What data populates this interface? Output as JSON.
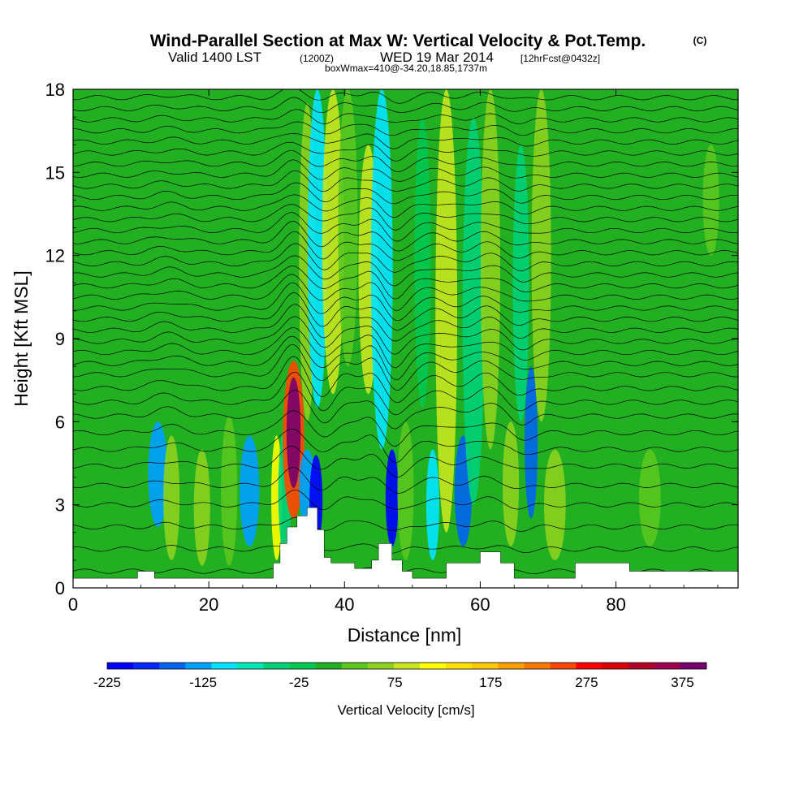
{
  "header": {
    "title": "Wind-Parallel Section at Max W: Vertical Velocity & Pot.Temp.",
    "copyright": "(C)",
    "valid_prefix": "Valid 1400 LST",
    "valid_utc": "(1200Z)",
    "valid_date": "WED 19 Mar 2014",
    "forecast": "[12hrFcst@0432z]",
    "box_info": "boxWmax=410@-34.20,18.85,1737m"
  },
  "colors": {
    "background_green": "#22b022",
    "terrain_fill": "#ffffff",
    "contour_line": "#000000"
  },
  "chart_data": {
    "type": "heatmap",
    "title": "Wind-Parallel Section at Max W: Vertical Velocity & Pot.Temp.",
    "xlabel": "Distance [nm]",
    "ylabel": "Height [Kft MSL]",
    "xlim": [
      0,
      98
    ],
    "ylim": [
      0,
      18
    ],
    "x_ticks": [
      "0",
      "20",
      "40",
      "60",
      "80"
    ],
    "y_ticks": [
      "0",
      "3",
      "6",
      "9",
      "12",
      "15",
      "18"
    ],
    "x_tick_values": [
      0,
      20,
      40,
      60,
      80
    ],
    "y_tick_values": [
      0,
      3,
      6,
      9,
      12,
      15,
      18
    ],
    "colorbar": {
      "label": "Vertical Velocity [cm/s]",
      "tick_labels": [
        "-225",
        "-125",
        "-25",
        "75",
        "175",
        "275",
        "375"
      ],
      "tick_values": [
        -225,
        -125,
        -25,
        75,
        175,
        275,
        375
      ],
      "min": -225,
      "max": 400,
      "colors": [
        "#0000ff",
        "#0028ff",
        "#0064f0",
        "#00a0ff",
        "#00e6ff",
        "#00e6b4",
        "#00d278",
        "#00c850",
        "#22b022",
        "#5ac81e",
        "#8cd21e",
        "#c8e61e",
        "#ffff00",
        "#ffe100",
        "#ffc800",
        "#ffa000",
        "#ff7800",
        "#ff4600",
        "#ff0000",
        "#dc0000",
        "#b40028",
        "#a00050",
        "#78006e"
      ]
    },
    "max_w": 410,
    "max_w_location": {
      "distance_nm": 32.5,
      "height_kft": 6.5
    },
    "terrain_kft": [
      [
        0,
        0.35
      ],
      [
        9.5,
        0.35
      ],
      [
        9.5,
        0.6
      ],
      [
        12,
        0.6
      ],
      [
        12,
        0.35
      ],
      [
        29.5,
        0.35
      ],
      [
        29.5,
        0.9
      ],
      [
        30.5,
        0.9
      ],
      [
        30.5,
        1.6
      ],
      [
        31.5,
        1.6
      ],
      [
        31.5,
        2.2
      ],
      [
        33,
        2.2
      ],
      [
        33,
        2.6
      ],
      [
        34.5,
        2.6
      ],
      [
        34.5,
        2.9
      ],
      [
        36,
        2.9
      ],
      [
        36,
        2.1
      ],
      [
        37,
        2.1
      ],
      [
        37,
        1.1
      ],
      [
        38,
        1.1
      ],
      [
        38,
        0.9
      ],
      [
        41.5,
        0.9
      ],
      [
        41.5,
        0.7
      ],
      [
        44,
        0.7
      ],
      [
        44,
        1.0
      ],
      [
        45,
        1.0
      ],
      [
        45,
        1.6
      ],
      [
        47,
        1.6
      ],
      [
        47,
        1.0
      ],
      [
        48.5,
        1.0
      ],
      [
        48.5,
        0.6
      ],
      [
        50,
        0.6
      ],
      [
        50,
        0.35
      ],
      [
        55,
        0.35
      ],
      [
        55,
        0.9
      ],
      [
        60,
        0.9
      ],
      [
        60,
        1.3
      ],
      [
        63,
        1.3
      ],
      [
        63,
        0.9
      ],
      [
        65,
        0.9
      ],
      [
        65,
        0.35
      ],
      [
        74,
        0.35
      ],
      [
        74,
        0.9
      ],
      [
        82,
        0.9
      ],
      [
        82,
        0.6
      ],
      [
        98,
        0.6
      ],
      [
        98,
        0
      ]
    ],
    "updraft_columns": [
      {
        "x": 12.5,
        "w": 1.8,
        "y0": 2.2,
        "y1": 6.0,
        "v": -120
      },
      {
        "x": 14.5,
        "w": 1.5,
        "y0": 1.0,
        "y1": 5.5,
        "v": 50
      },
      {
        "x": 19,
        "w": 1.5,
        "y0": 0.8,
        "y1": 5.0,
        "v": 60
      },
      {
        "x": 23,
        "w": 1.5,
        "y0": 0.8,
        "y1": 6.2,
        "v": 40
      },
      {
        "x": 26,
        "w": 1.8,
        "y0": 1.5,
        "y1": 5.5,
        "v": -120
      },
      {
        "x": 30,
        "w": 1.0,
        "y0": 1.0,
        "y1": 5.5,
        "v": 120
      },
      {
        "x": 31.2,
        "w": 1.2,
        "y0": 1.2,
        "y1": 5.8,
        "v": -60
      },
      {
        "x": 32.5,
        "w": 2.0,
        "y0": 2.5,
        "y1": 8.2,
        "v": 260
      },
      {
        "x": 32.5,
        "w": 1.3,
        "y0": 3.6,
        "y1": 7.6,
        "v": 390
      },
      {
        "x": 34.5,
        "w": 1.5,
        "y0": 2.2,
        "y1": 5.0,
        "v": -120
      },
      {
        "x": 35.8,
        "w": 1.2,
        "y0": 1.5,
        "y1": 4.8,
        "v": -225
      },
      {
        "x": 34.5,
        "w": 1.5,
        "y0": 6.0,
        "y1": 17.5,
        "v": 50
      },
      {
        "x": 36,
        "w": 1.8,
        "y0": 6.5,
        "y1": 18.0,
        "v": -100
      },
      {
        "x": 38.3,
        "w": 2.0,
        "y0": 7.0,
        "y1": 18.0,
        "v": 90
      },
      {
        "x": 40.5,
        "w": 1.8,
        "y0": 8.0,
        "y1": 18.0,
        "v": 20
      },
      {
        "x": 43.5,
        "w": 1.8,
        "y0": 7.0,
        "y1": 16.0,
        "v": 80
      },
      {
        "x": 45.5,
        "w": 2.0,
        "y0": 5.0,
        "y1": 18.0,
        "v": -110
      },
      {
        "x": 47,
        "w": 1.2,
        "y0": 1.5,
        "y1": 5.0,
        "v": -200
      },
      {
        "x": 49,
        "w": 1.5,
        "y0": 1.0,
        "y1": 6.0,
        "v": 40
      },
      {
        "x": 51.5,
        "w": 1.5,
        "y0": 6.5,
        "y1": 17.0,
        "v": -20
      },
      {
        "x": 53,
        "w": 1.2,
        "y0": 1.0,
        "y1": 5.0,
        "v": -100
      },
      {
        "x": 55,
        "w": 2.0,
        "y0": 2.0,
        "y1": 18.0,
        "v": 80
      },
      {
        "x": 57.5,
        "w": 1.6,
        "y0": 1.5,
        "y1": 5.5,
        "v": -170
      },
      {
        "x": 59,
        "w": 2.0,
        "y0": 3.0,
        "y1": 17.0,
        "v": -60
      },
      {
        "x": 61.5,
        "w": 1.8,
        "y0": 5.0,
        "y1": 18.0,
        "v": 60
      },
      {
        "x": 64.5,
        "w": 1.5,
        "y0": 1.5,
        "y1": 6.0,
        "v": 70
      },
      {
        "x": 66,
        "w": 1.5,
        "y0": 6.0,
        "y1": 16.0,
        "v": -40
      },
      {
        "x": 67.5,
        "w": 1.2,
        "y0": 2.5,
        "y1": 8.0,
        "v": -150
      },
      {
        "x": 69,
        "w": 1.8,
        "y0": 6.0,
        "y1": 18.0,
        "v": 70
      },
      {
        "x": 71,
        "w": 2.0,
        "y0": 1.0,
        "y1": 5.0,
        "v": 60
      },
      {
        "x": 78,
        "w": 2.0,
        "y0": 7.5,
        "y1": 18.0,
        "v": 10
      },
      {
        "x": 85,
        "w": 2.0,
        "y0": 1.5,
        "y1": 5.0,
        "v": 30
      },
      {
        "x": 94,
        "w": 1.5,
        "y0": 12.0,
        "y1": 16.0,
        "v": 20
      }
    ],
    "potential_temperature_levels_kft": [
      0.6,
      1.4,
      2.2,
      3.0,
      3.7,
      4.4,
      5.0,
      5.6,
      6.2,
      6.7,
      7.2,
      7.7,
      8.1,
      8.5,
      8.9,
      9.3,
      9.7,
      10.1,
      10.5,
      10.9,
      11.3,
      11.7,
      12.1,
      12.5,
      12.9,
      13.3,
      13.7,
      14.1,
      14.5,
      14.9,
      15.3,
      15.7,
      16.1,
      16.5,
      16.9,
      17.3,
      17.7
    ],
    "wave_perturbations": [
      {
        "x": 32.5,
        "width": 2.5,
        "amp_kft": 1.1
      },
      {
        "x": 37,
        "width": 2.0,
        "amp_kft": -0.4
      },
      {
        "x": 40,
        "width": 2.5,
        "amp_kft": 0.5
      },
      {
        "x": 44,
        "width": 2.0,
        "amp_kft": 0.6
      },
      {
        "x": 47.5,
        "width": 2.0,
        "amp_kft": -0.6
      },
      {
        "x": 53,
        "width": 3.0,
        "amp_kft": 0.4
      },
      {
        "x": 61,
        "width": 3.0,
        "amp_kft": 0.5
      },
      {
        "x": 66,
        "width": 2.0,
        "amp_kft": -0.3
      },
      {
        "x": 14,
        "width": 3.0,
        "amp_kft": 0.3
      }
    ]
  }
}
